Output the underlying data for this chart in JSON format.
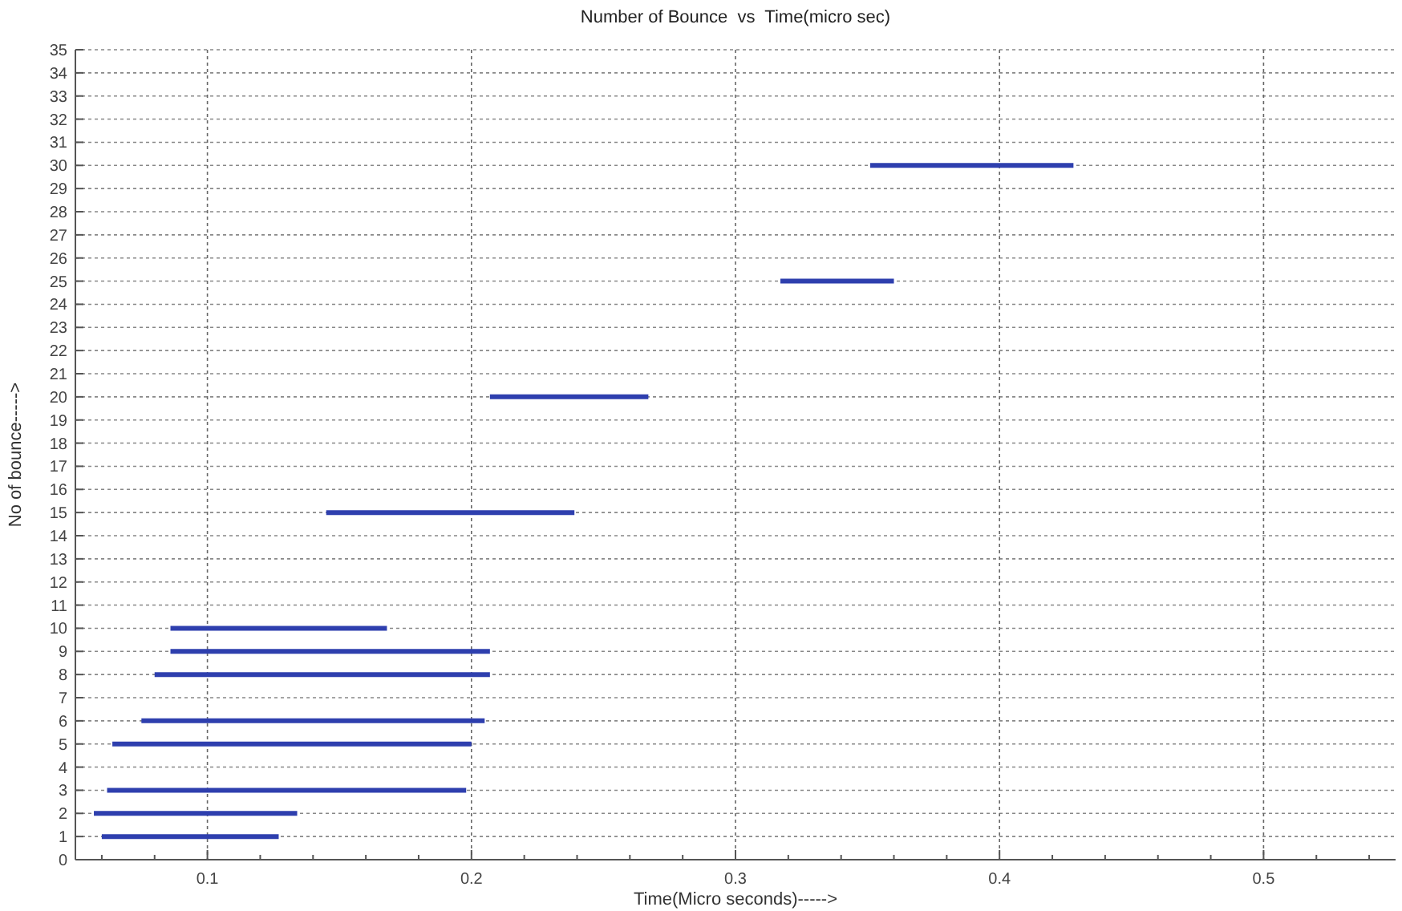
{
  "chart_data": {
    "type": "line",
    "title": "Number of Bounce  vs  Time(micro sec)",
    "xlabel": "Time(Micro seconds)----->",
    "ylabel": "No of bounce----->",
    "xlim": [
      0.05,
      0.55
    ],
    "xticks": [
      {
        "value": 0.06,
        "label": null
      },
      {
        "value": 0.08,
        "label": null
      },
      0.1,
      {
        "value": 0.12,
        "label": null
      },
      {
        "value": 0.14,
        "label": null
      },
      {
        "value": 0.16,
        "label": null
      },
      {
        "value": 0.18,
        "label": null
      },
      0.2,
      {
        "value": 0.22,
        "label": null
      },
      {
        "value": 0.24,
        "label": null
      },
      {
        "value": 0.26,
        "label": null
      },
      {
        "value": 0.28,
        "label": null
      },
      0.3,
      {
        "value": 0.32,
        "label": null
      },
      {
        "value": 0.34,
        "label": null
      },
      {
        "value": 0.36,
        "label": null
      },
      {
        "value": 0.38,
        "label": null
      },
      0.4,
      {
        "value": 0.42,
        "label": null
      },
      {
        "value": 0.44,
        "label": null
      },
      {
        "value": 0.46,
        "label": null
      },
      {
        "value": 0.48,
        "label": null
      },
      0.5,
      {
        "value": 0.52,
        "label": null
      },
      {
        "value": 0.54,
        "label": null
      }
    ],
    "ylim": [
      0,
      35
    ],
    "yticks": [
      0,
      1,
      2,
      3,
      4,
      5,
      6,
      7,
      8,
      9,
      10,
      11,
      12,
      13,
      14,
      15,
      16,
      17,
      18,
      19,
      20,
      21,
      22,
      23,
      24,
      25,
      26,
      27,
      28,
      29,
      30,
      31,
      32,
      33,
      34,
      35
    ],
    "grid": true,
    "marker": "none",
    "line_style": "solid",
    "series": [
      {
        "color": "#2e3fae",
        "x": [
          0.06,
          0.127
        ],
        "values": [
          1,
          1
        ]
      },
      {
        "color": "#2e3fae",
        "x": [
          0.057,
          0.134
        ],
        "values": [
          2,
          2
        ]
      },
      {
        "color": "#2e3fae",
        "x": [
          0.062,
          0.198
        ],
        "values": [
          3,
          3
        ]
      },
      {
        "color": "#2e3fae",
        "x": [
          0.064,
          0.2
        ],
        "values": [
          5,
          5
        ]
      },
      {
        "color": "#2e3fae",
        "x": [
          0.075,
          0.205
        ],
        "values": [
          6,
          6
        ]
      },
      {
        "color": "#2e3fae",
        "x": [
          0.08,
          0.207
        ],
        "values": [
          8,
          8
        ]
      },
      {
        "color": "#2e3fae",
        "x": [
          0.086,
          0.207
        ],
        "values": [
          9,
          9
        ]
      },
      {
        "color": "#2e3fae",
        "x": [
          0.086,
          0.168
        ],
        "values": [
          10,
          10
        ]
      },
      {
        "color": "#2e3fae",
        "x": [
          0.145,
          0.239
        ],
        "values": [
          15,
          15
        ]
      },
      {
        "color": "#2e3fae",
        "x": [
          0.207,
          0.267
        ],
        "values": [
          20,
          20
        ]
      },
      {
        "color": "#2e3fae",
        "x": [
          0.317,
          0.36
        ],
        "values": [
          25,
          25
        ]
      },
      {
        "color": "#2e3fae",
        "x": [
          0.351,
          0.428
        ],
        "values": [
          30,
          30
        ]
      }
    ]
  }
}
